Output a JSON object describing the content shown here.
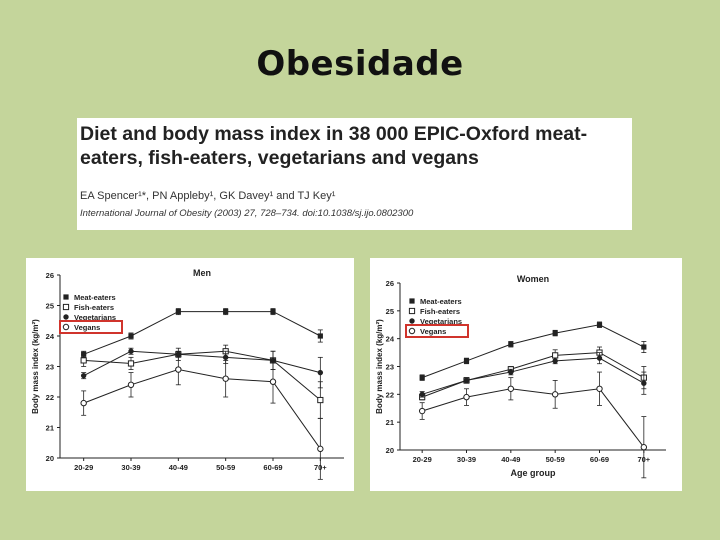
{
  "slide": {
    "title": "Obesidade"
  },
  "paper": {
    "heading": "Diet and body mass index in 38 000 EPIC-Oxford meat-eaters, fish-eaters, vegetarians and vegans",
    "authors": "EA Spencer¹*, PN Appleby¹, GK Davey¹ and TJ Key¹",
    "reference": "International Journal of Obesity (2003) 27, 728–734. doi:10.1038/sj.ijo.0802300"
  },
  "colors": {
    "background": "#c4d59b",
    "highlight": "#d0342c",
    "line": "#222222"
  },
  "chart_data": [
    {
      "type": "line",
      "title": "Men",
      "ylabel": "Body mass index (kg/m²)",
      "xlabel": "",
      "categories": [
        "20-29",
        "30-39",
        "40-49",
        "50-59",
        "60-69",
        "70+"
      ],
      "ylim": [
        20,
        26
      ],
      "yticks": [
        "20",
        "21",
        "22",
        "23",
        "24",
        "25",
        "26"
      ],
      "legend_position": "top-left",
      "highlighted_series": "Vegans",
      "series": [
        {
          "name": "Meat-eaters",
          "marker": "filled-square",
          "values": [
            23.4,
            24.0,
            24.8,
            24.8,
            24.8,
            24.0
          ],
          "err": [
            0.1,
            0.1,
            0.1,
            0.1,
            0.1,
            0.2
          ]
        },
        {
          "name": "Fish-eaters",
          "marker": "open-square",
          "values": [
            23.2,
            23.1,
            23.4,
            23.5,
            23.2,
            21.9
          ],
          "err": [
            0.2,
            0.2,
            0.2,
            0.2,
            0.3,
            0.6
          ]
        },
        {
          "name": "Vegetarians",
          "marker": "filled-circle",
          "values": [
            22.7,
            23.5,
            23.4,
            23.3,
            23.2,
            22.8
          ],
          "err": [
            0.1,
            0.1,
            0.1,
            0.2,
            0.3,
            0.5
          ]
        },
        {
          "name": "Vegans",
          "marker": "open-circle",
          "values": [
            21.8,
            22.4,
            22.9,
            22.6,
            22.5,
            20.3
          ],
          "err": [
            0.4,
            0.4,
            0.5,
            0.6,
            0.7,
            1.0
          ]
        }
      ]
    },
    {
      "type": "line",
      "title": "Women",
      "ylabel": "Body mass index (kg/m²)",
      "xlabel": "Age group",
      "categories": [
        "20-29",
        "30-39",
        "40-49",
        "50-59",
        "60-69",
        "70+"
      ],
      "ylim": [
        20,
        26
      ],
      "yticks": [
        "20",
        "21",
        "22",
        "23",
        "24",
        "25",
        "26"
      ],
      "legend_position": "top-left",
      "highlighted_series": "Vegans",
      "series": [
        {
          "name": "Meat-eaters",
          "marker": "filled-square",
          "values": [
            22.6,
            23.2,
            23.8,
            24.2,
            24.5,
            23.7
          ],
          "err": [
            0.1,
            0.1,
            0.1,
            0.1,
            0.1,
            0.2
          ]
        },
        {
          "name": "Fish-eaters",
          "marker": "open-square",
          "values": [
            21.9,
            22.5,
            22.9,
            23.4,
            23.5,
            22.6
          ],
          "err": [
            0.1,
            0.1,
            0.1,
            0.2,
            0.2,
            0.4
          ]
        },
        {
          "name": "Vegetarians",
          "marker": "filled-circle",
          "values": [
            22.0,
            22.5,
            22.8,
            23.2,
            23.3,
            22.4
          ],
          "err": [
            0.1,
            0.1,
            0.1,
            0.1,
            0.2,
            0.4
          ]
        },
        {
          "name": "Vegans",
          "marker": "open-circle",
          "values": [
            21.4,
            21.9,
            22.2,
            22.0,
            22.2,
            20.1
          ],
          "err": [
            0.3,
            0.3,
            0.4,
            0.5,
            0.6,
            1.1
          ]
        }
      ]
    }
  ]
}
